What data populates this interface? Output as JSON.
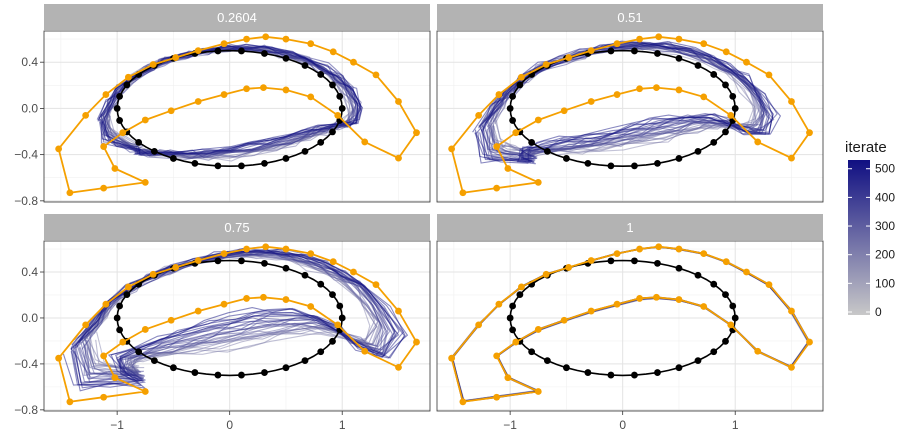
{
  "chart_data": {
    "type": "line",
    "layout": "facet-grid-2x2",
    "x_ticks": [
      -1,
      0,
      1
    ],
    "y_ticks": [
      -0.8,
      -0.4,
      0.0,
      0.4
    ],
    "x_tick_labels": [
      "−1",
      "0",
      "1"
    ],
    "y_tick_labels": [
      "−0.8",
      "−0.4",
      "0.0",
      "0.4"
    ],
    "xlim": [
      -1.65,
      1.78
    ],
    "ylim": [
      -0.81,
      0.67
    ],
    "legend": {
      "title": "iterate",
      "position": "right",
      "ticks": [
        0,
        100,
        200,
        300,
        400,
        500
      ],
      "tick_labels": [
        "0",
        "100",
        "200",
        "300",
        "400",
        "500"
      ],
      "color_low": "#c8c8c8",
      "color_high": "#100f82"
    },
    "colors": {
      "target": "#f5a000",
      "start": "#000000",
      "iterates": "#3b1d91",
      "strip": "#b3b3b3"
    },
    "start_ellipse": {
      "cx": 0.0,
      "cy": 0.0,
      "rx": 1.0,
      "ry": 0.5,
      "n_points": 30
    },
    "target_curve": {
      "x": [
        -1.52,
        -1.28,
        -1.1,
        -0.9,
        -0.68,
        -0.48,
        -0.28,
        -0.05,
        0.15,
        0.32,
        0.5,
        0.72,
        0.92,
        1.1,
        1.3,
        1.5,
        1.66,
        1.5,
        1.2,
        0.96,
        0.72,
        0.5,
        0.3,
        0.15,
        -0.05,
        -0.28,
        -0.52,
        -0.75,
        -0.95,
        -1.12,
        -1.02,
        -0.75,
        -1.12,
        -1.42,
        -1.52
      ],
      "y": [
        -0.35,
        -0.06,
        0.12,
        0.27,
        0.38,
        0.44,
        0.5,
        0.56,
        0.6,
        0.62,
        0.6,
        0.56,
        0.49,
        0.4,
        0.29,
        0.06,
        -0.21,
        -0.43,
        -0.29,
        -0.06,
        0.1,
        0.16,
        0.18,
        0.17,
        0.12,
        0.06,
        -0.02,
        -0.1,
        -0.21,
        -0.33,
        -0.52,
        -0.64,
        -0.69,
        -0.73,
        -0.35
      ]
    },
    "panels": [
      {
        "label": "0.2604",
        "t": 0.2604
      },
      {
        "label": "0.51",
        "t": 0.51
      },
      {
        "label": "0.75",
        "t": 0.75
      },
      {
        "label": "1",
        "t": 1
      }
    ]
  }
}
